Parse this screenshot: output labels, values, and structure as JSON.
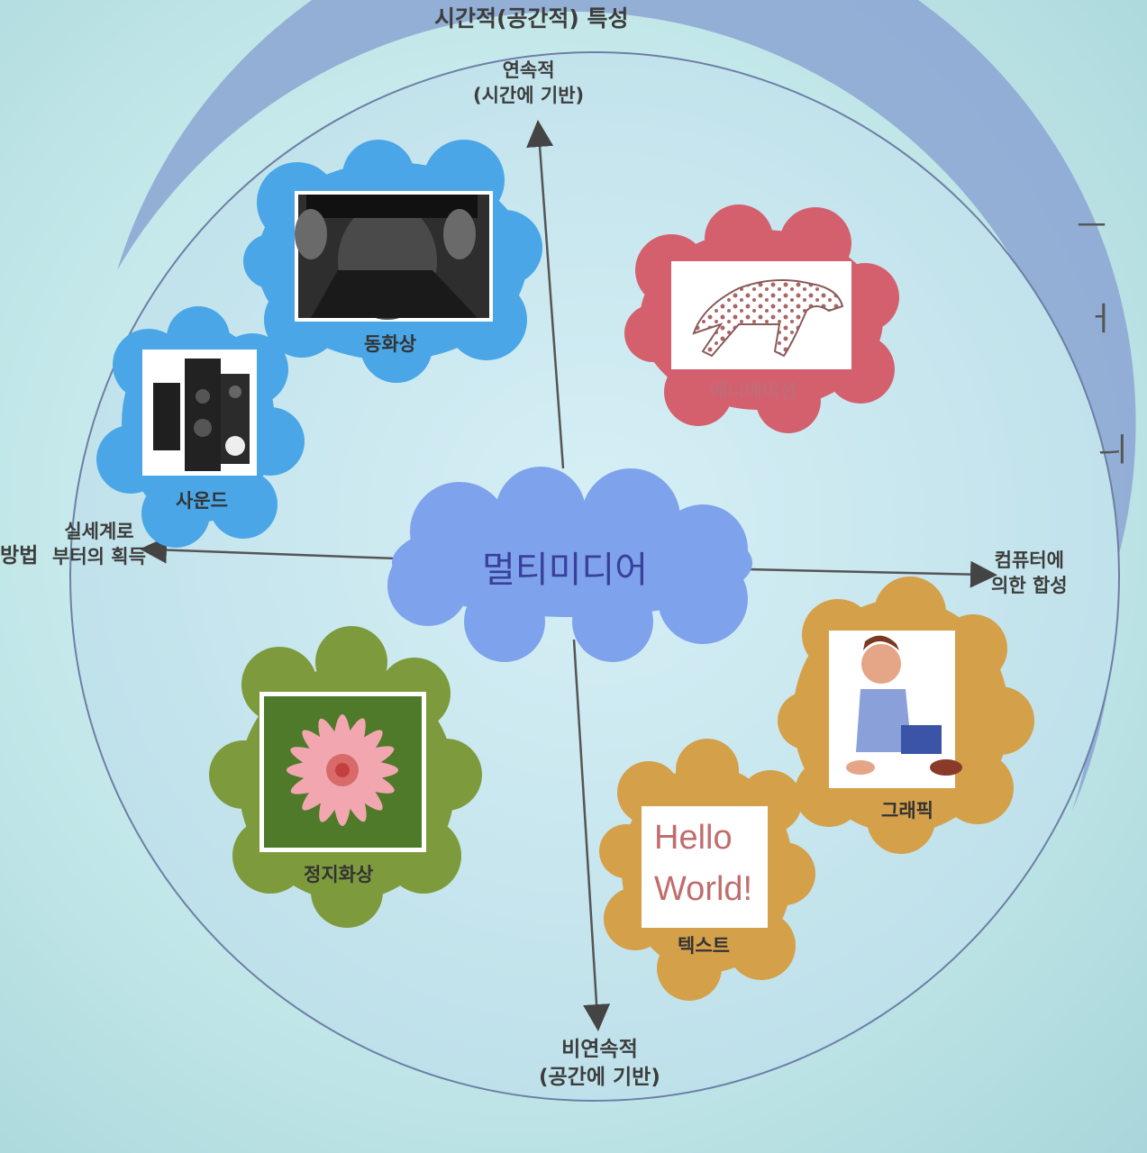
{
  "header": {
    "title": "시간적(공간적) 특성"
  },
  "axes": {
    "top": [
      "연속적",
      "(시간에 기반)"
    ],
    "bottom": [
      "비연속적",
      "(공간에 기반)"
    ],
    "left": [
      "실세계로",
      "부터의 획득"
    ],
    "right": [
      "컴퓨터에",
      "의한 합성"
    ],
    "left_edge": "방법"
  },
  "center": {
    "label": "멀티미디어"
  },
  "items": [
    {
      "caption": "동화상",
      "cloud_color": "#4aa6e6",
      "icon": "video-photo-icon"
    },
    {
      "caption": "사운드",
      "cloud_color": "#4aa6e6",
      "icon": "speaker-icon"
    },
    {
      "caption": "애니메이션",
      "cloud_color": "#d4606e",
      "icon": "cheetah-animation-icon"
    },
    {
      "caption": "그래픽",
      "cloud_color": "#d4a04a",
      "icon": "cartoon-man-icon"
    },
    {
      "caption": "텍스트",
      "cloud_color": "#d4a04a",
      "icon": "text-icon",
      "text_lines": [
        "Hello",
        "World!"
      ]
    },
    {
      "caption": "정지화상",
      "cloud_color": "#7d9a3c",
      "icon": "flower-photo-icon"
    }
  ],
  "right_edge_chars": [
    "ㅡ",
    "ㅓ",
    "ㅢ"
  ],
  "colors": {
    "center_cloud": "#7ea3ec",
    "circle_fill": "#cdeaf2",
    "rim": "#8ea9d4",
    "axis": "#555555"
  }
}
